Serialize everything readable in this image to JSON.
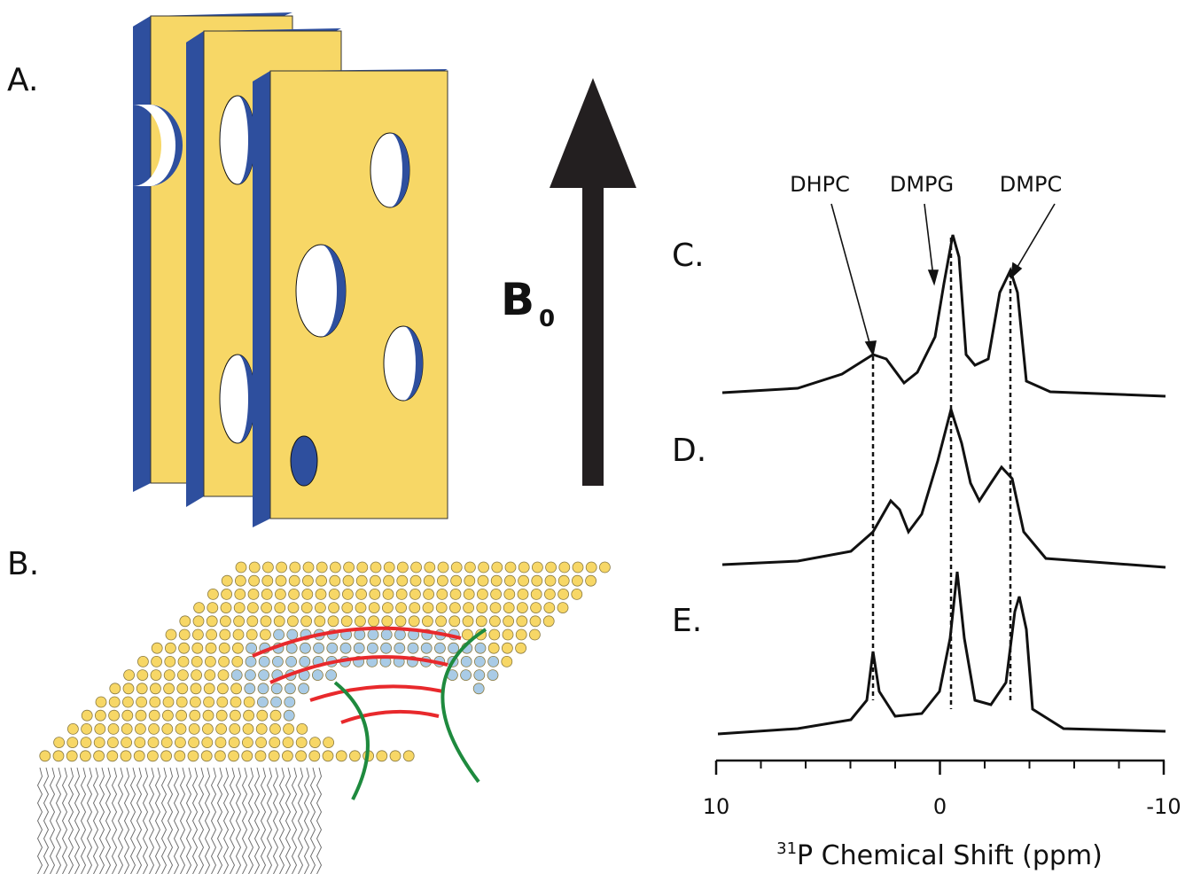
{
  "panels": {
    "a": {
      "label": "A.",
      "field_label": "B",
      "field_subscript": "0"
    },
    "b": {
      "label": "B."
    }
  },
  "spectra": {
    "traces": [
      {
        "label": "C."
      },
      {
        "label": "D."
      },
      {
        "label": "E."
      }
    ],
    "peak_labels": [
      "DHPC",
      "DMPG",
      "DMPC"
    ],
    "axis": {
      "label_superscript": "31",
      "label": "P Chemical Shift (ppm)",
      "xlim": [
        10,
        -10
      ],
      "xticks": [
        10,
        0,
        -10
      ],
      "xminorticks": [
        8,
        6,
        4,
        2,
        -2,
        -4,
        -6,
        -8
      ]
    }
  }
}
